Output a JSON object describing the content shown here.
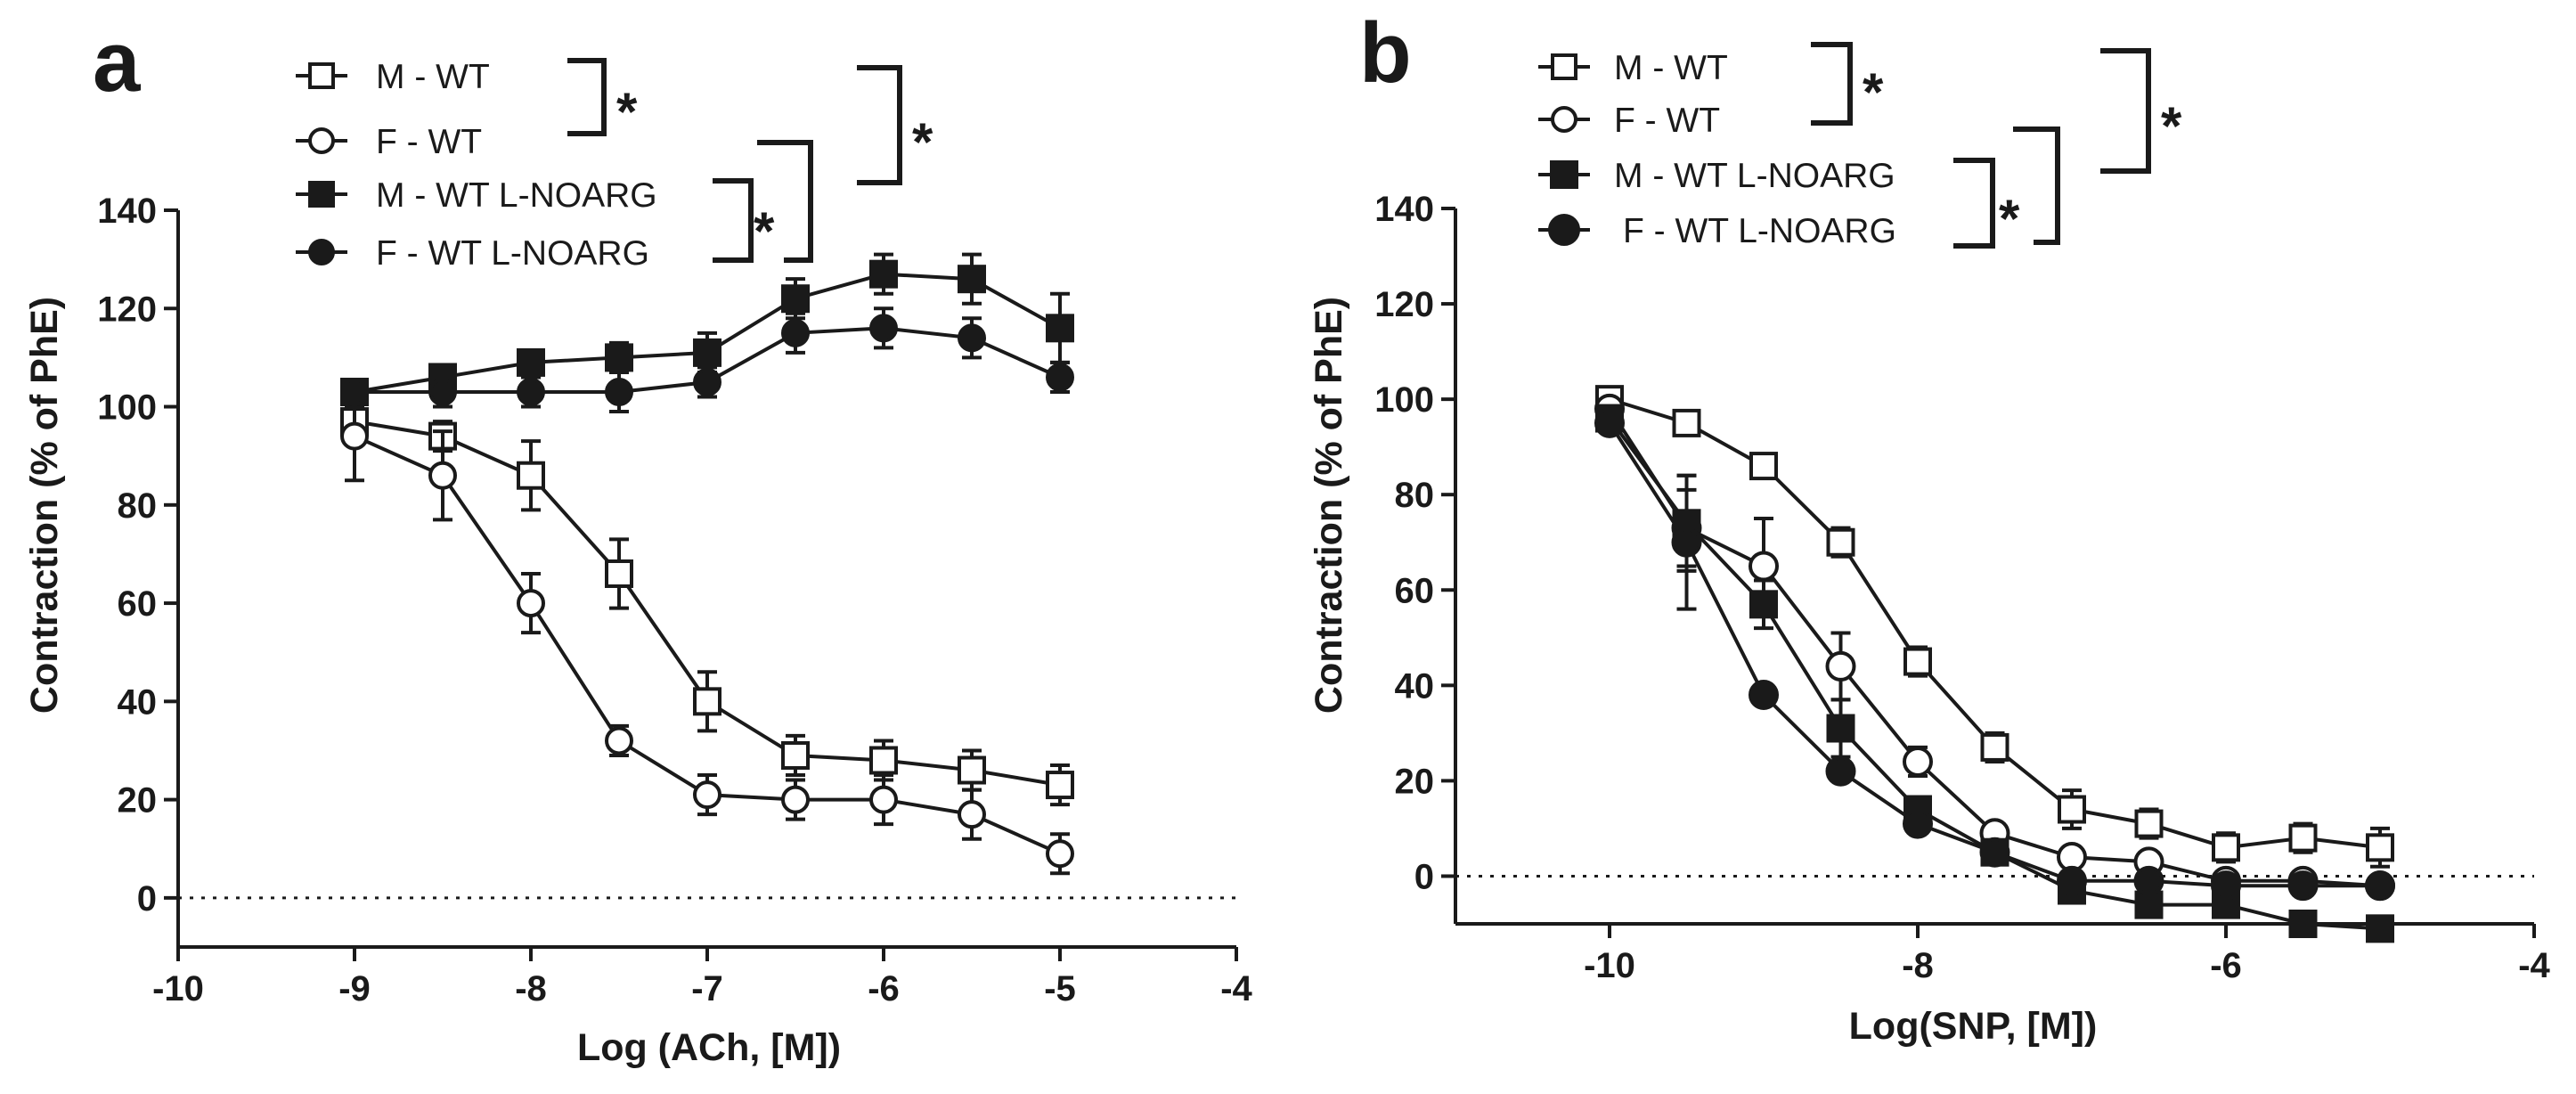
{
  "chart_data": [
    {
      "type": "line",
      "panel": "a",
      "xlabel": "Log (ACh, [M])",
      "ylabel": "Contraction (% of PhE)",
      "xlim": [
        -10,
        -4
      ],
      "ylim": [
        -10,
        140
      ],
      "xticks": [
        -10,
        -9,
        -8,
        -7,
        -6,
        -5,
        -4
      ],
      "yticks": [
        0,
        20,
        40,
        60,
        80,
        100,
        120,
        140
      ],
      "xtick_labels": [
        "-10",
        "-9",
        "-8",
        "-7",
        "-6",
        "-5",
        "-4"
      ],
      "ytick_labels": [
        "0",
        "20",
        "40",
        "60",
        "80",
        "100",
        "120",
        "140"
      ],
      "reference_line": 0,
      "x": [
        -9,
        -8.5,
        -8,
        -7.5,
        -7,
        -6.5,
        -6,
        -5.5,
        -5
      ],
      "series": [
        {
          "name": "M - WT",
          "marker": "square-open",
          "values": [
            97,
            94,
            86,
            66,
            40,
            29,
            28,
            26,
            23
          ],
          "errors": [
            3,
            3,
            7,
            7,
            6,
            4,
            4,
            4,
            4
          ]
        },
        {
          "name": "F - WT",
          "marker": "circle-open",
          "values": [
            94,
            86,
            60,
            32,
            21,
            20,
            20,
            17,
            9
          ],
          "errors": [
            9,
            9,
            6,
            3,
            4,
            4,
            5,
            5,
            4
          ]
        },
        {
          "name": "M - WT L-NOARG",
          "marker": "square-filled",
          "values": [
            103,
            106,
            109,
            110,
            111,
            122,
            127,
            126,
            116
          ],
          "errors": [
            2,
            2,
            2,
            3,
            4,
            4,
            4,
            5,
            7
          ]
        },
        {
          "name": "F - WT L-NOARG",
          "marker": "circle-filled",
          "values": [
            103,
            103,
            103,
            103,
            105,
            115,
            116,
            114,
            106
          ],
          "errors": [
            2,
            3,
            3,
            4,
            3,
            4,
            4,
            4,
            3
          ]
        }
      ],
      "significance": [
        "*",
        "*",
        "*"
      ]
    },
    {
      "type": "line",
      "panel": "b",
      "xlabel": "Log(SNP, [M])",
      "ylabel": "Contraction (% of PhE)",
      "xlim": [
        -11,
        -4
      ],
      "ylim": [
        -10,
        140
      ],
      "xticks": [
        -10,
        -8,
        -6,
        -4
      ],
      "yticks": [
        0,
        20,
        40,
        60,
        80,
        100,
        120,
        140
      ],
      "xtick_labels": [
        "-10",
        "-8",
        "-6",
        "-4"
      ],
      "ytick_labels": [
        "0",
        "20",
        "40",
        "60",
        "80",
        "100",
        "120",
        "140"
      ],
      "reference_line": 0,
      "x": [
        -10,
        -9.5,
        -9,
        -8.5,
        -8,
        -7.5,
        -7,
        -6.5,
        -6,
        -5.5,
        -5
      ],
      "series": [
        {
          "name": "M - WT",
          "marker": "square-open",
          "values": [
            100,
            95,
            86,
            70,
            45,
            27,
            14,
            11,
            6,
            8,
            6
          ],
          "errors": [
            2,
            2,
            2,
            3,
            3,
            3,
            4,
            3,
            3,
            3,
            4
          ]
        },
        {
          "name": "F - WT",
          "marker": "circle-open",
          "values": [
            98,
            73,
            65,
            44,
            24,
            9,
            4,
            3,
            -1,
            -1,
            -2
          ],
          "errors": [
            2,
            8,
            10,
            7,
            3,
            2,
            2,
            2,
            2,
            2,
            2
          ]
        },
        {
          "name": "M - WT L-NOARG",
          "marker": "square-filled",
          "values": [
            96,
            74,
            57,
            31,
            14,
            5,
            -3,
            -6,
            -6,
            -10,
            -11
          ],
          "errors": [
            2,
            10,
            5,
            6,
            2,
            2,
            2,
            2,
            2,
            2,
            2
          ]
        },
        {
          "name": "F - WT L-NOARG",
          "marker": "circle-filled",
          "values": [
            95,
            70,
            38,
            22,
            11,
            5,
            -1,
            -1,
            -2,
            -2,
            -2
          ],
          "errors": [
            2,
            14,
            2,
            2,
            2,
            2,
            2,
            2,
            2,
            2,
            2
          ]
        }
      ],
      "significance": [
        "*",
        "*",
        "*"
      ]
    }
  ]
}
